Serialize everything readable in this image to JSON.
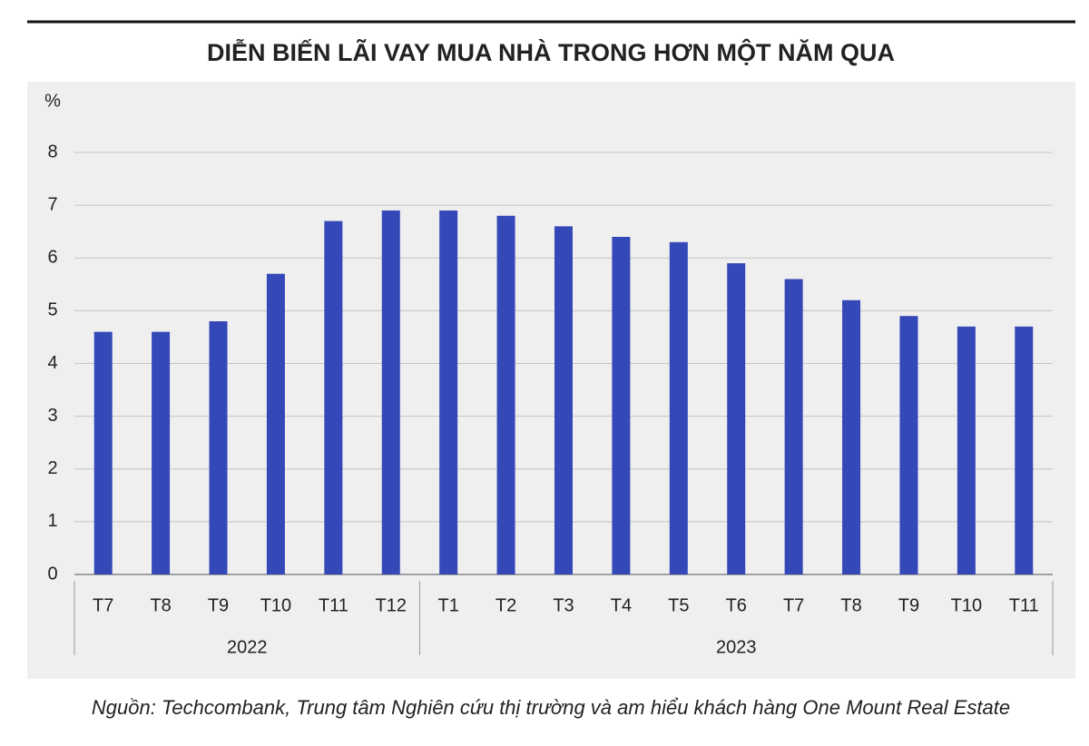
{
  "chart_data": {
    "type": "bar",
    "title": "DIỄN BIẾN LÃI VAY MUA NHÀ TRONG HƠN MỘT NĂM QUA",
    "y_label": "%",
    "groups": [
      {
        "label": "2022",
        "categories": [
          "T7",
          "T8",
          "T9",
          "T10",
          "T11",
          "T12"
        ],
        "values": [
          4.6,
          4.6,
          4.8,
          5.7,
          6.7,
          6.9
        ]
      },
      {
        "label": "2023",
        "categories": [
          "T1",
          "T2",
          "T3",
          "T4",
          "T5",
          "T6",
          "T7",
          "T8",
          "T9",
          "T10",
          "T11"
        ],
        "values": [
          6.9,
          6.8,
          6.6,
          6.4,
          6.3,
          5.9,
          5.6,
          5.2,
          4.9,
          4.7,
          4.7
        ]
      }
    ],
    "color": "#3548b8",
    "ylim": [
      0,
      8
    ],
    "yticks": [
      0,
      1,
      2,
      3,
      4,
      5,
      6,
      7,
      8
    ],
    "grid": true,
    "source": "Nguồn: Techcombank, Trung tâm Nghiên cứu thị trường và am hiểu khách hàng One Mount Real Estate"
  }
}
